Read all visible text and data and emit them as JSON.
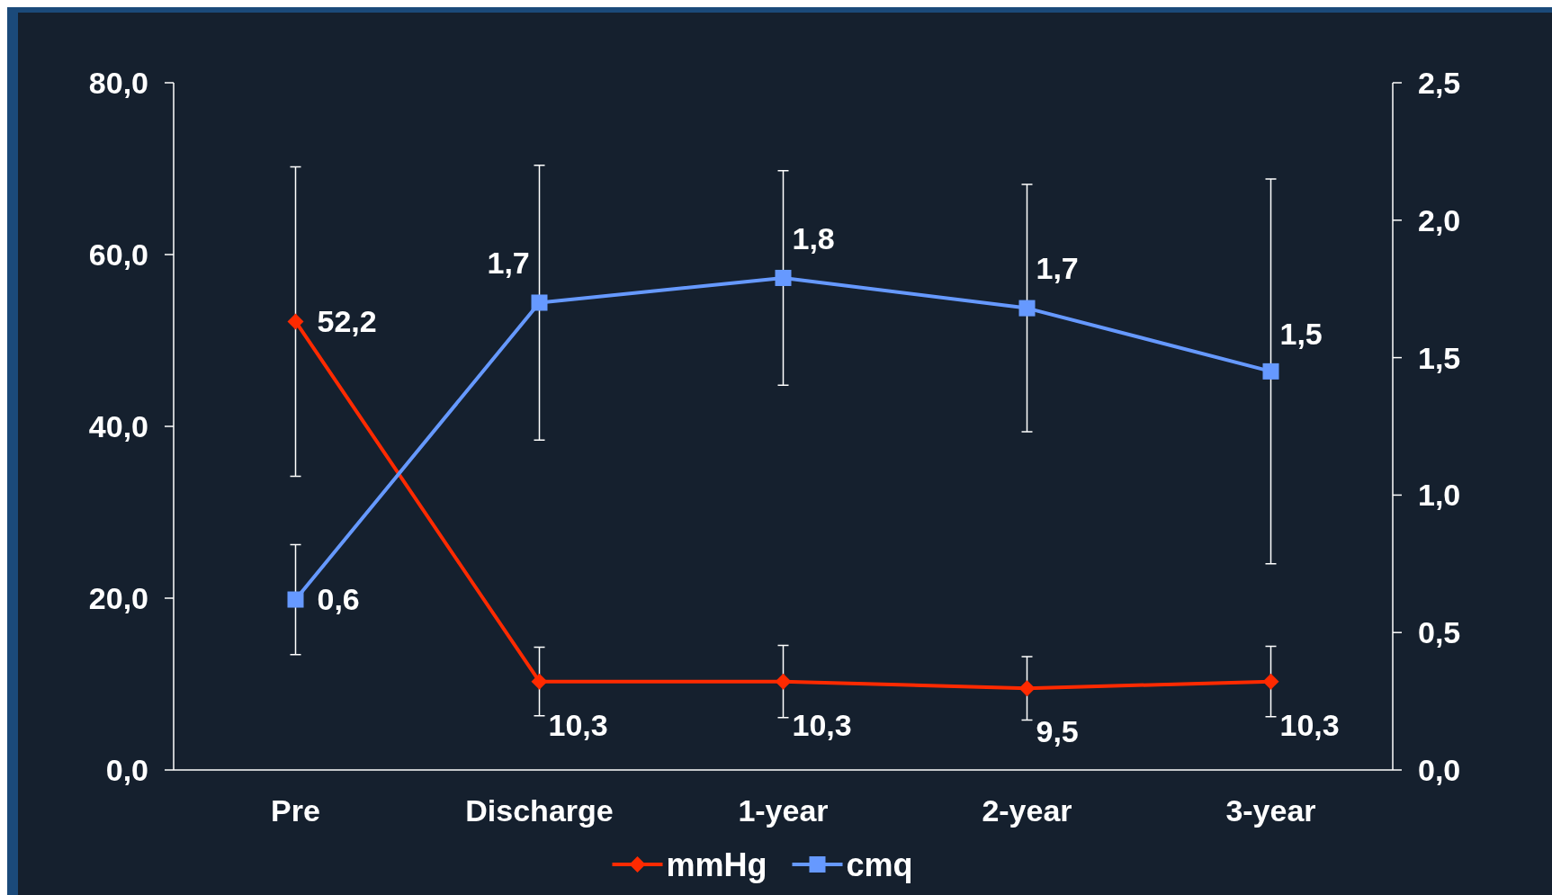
{
  "chart_data": {
    "type": "line",
    "categories": [
      "Pre",
      "Discharge",
      "1-year",
      "2-year",
      "3-year"
    ],
    "series": [
      {
        "name": "mmHg",
        "color": "#ff2a00",
        "marker": "diamond",
        "values": [
          52.2,
          10.3,
          10.3,
          9.5,
          10.3
        ],
        "errors": [
          18,
          4,
          4.2,
          3.7,
          4.1
        ],
        "value_labels": [
          "52,2",
          "10,3",
          "10,3",
          "9,5",
          "10,3"
        ]
      },
      {
        "name": "cmq",
        "color": "#6699ff",
        "marker": "square",
        "axis": "y2",
        "values": [
          0.62,
          1.7,
          1.79,
          1.68,
          1.45
        ],
        "errors": [
          0.2,
          0.5,
          0.39,
          0.45,
          0.7
        ],
        "value_labels": [
          "0,6",
          "1,7",
          "1,8",
          "1,7",
          "1,5"
        ]
      }
    ],
    "ylim": [
      0,
      80
    ],
    "yticks": [
      {
        "value": 0,
        "label": "0,0"
      },
      {
        "value": 20,
        "label": "20,0"
      },
      {
        "value": 40,
        "label": "40,0"
      },
      {
        "value": 60,
        "label": "60,0"
      },
      {
        "value": 80,
        "label": "80,0"
      }
    ],
    "y2lim": [
      0,
      2.5
    ],
    "y2ticks": [
      {
        "value": 0,
        "label": "0,0"
      },
      {
        "value": 0.5,
        "label": "0,5"
      },
      {
        "value": 1,
        "label": "1,0"
      },
      {
        "value": 1.5,
        "label": "1,5"
      },
      {
        "value": 2,
        "label": "2,0"
      },
      {
        "value": 2.5,
        "label": "2,5"
      }
    ],
    "legend": "bottom",
    "grid": false,
    "line_style": "solid"
  }
}
